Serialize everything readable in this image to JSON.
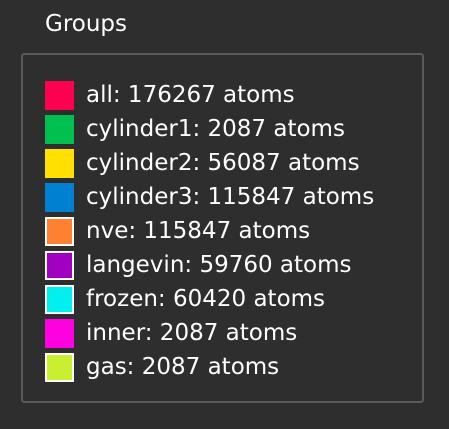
{
  "panel": {
    "title": "Groups"
  },
  "groups": [
    {
      "label": "all: 176267 atoms",
      "color": "#ff0050",
      "outlined": false
    },
    {
      "label": "cylinder1: 2087 atoms",
      "color": "#00c050",
      "outlined": false
    },
    {
      "label": "cylinder2: 56087 atoms",
      "color": "#ffe000",
      "outlined": false
    },
    {
      "label": "cylinder3: 115847 atoms",
      "color": "#0080d0",
      "outlined": false
    },
    {
      "label": "nve: 115847 atoms",
      "color": "#ff8030",
      "outlined": true
    },
    {
      "label": "langevin: 59760 atoms",
      "color": "#a000c0",
      "outlined": true
    },
    {
      "label": "frozen: 60420 atoms",
      "color": "#00f0f0",
      "outlined": true
    },
    {
      "label": "inner: 2087 atoms",
      "color": "#ff00e0",
      "outlined": false
    },
    {
      "label": "gas: 2087 atoms",
      "color": "#c8f030",
      "outlined": true
    }
  ]
}
